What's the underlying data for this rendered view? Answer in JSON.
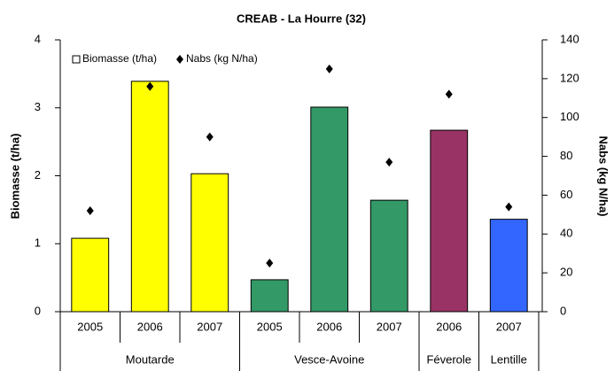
{
  "chart_data": {
    "type": "bar",
    "title": "CREAB - La Hourre (32)",
    "y_label": "Biomasse (t/ha)",
    "y2_label": "Nabs (kg N/ha)",
    "categories": [
      "2005",
      "2006",
      "2007",
      "2005",
      "2006",
      "2007",
      "2006",
      "2007"
    ],
    "groups": [
      "Moutarde",
      "Moutarde",
      "Moutarde",
      "Vesce-Avoine",
      "Vesce-Avoine",
      "Vesce-Avoine",
      "Féverole",
      "Lentille"
    ],
    "series": [
      {
        "name": "Biomasse (t/ha)",
        "type": "bar",
        "color": "#ffffff",
        "colors": [
          "#ffff00",
          "#ffff00",
          "#ffff00",
          "#339966",
          "#339966",
          "#339966",
          "#993366",
          "#3366ff"
        ],
        "values": [
          1.08,
          3.39,
          2.03,
          0.47,
          3.01,
          1.64,
          2.67,
          1.36
        ]
      },
      {
        "name": "Nabs (kg N/ha)",
        "type": "scatter",
        "axis": "y2",
        "color": "#000000",
        "values": [
          52,
          116,
          90,
          25,
          125,
          77,
          112,
          54
        ]
      }
    ],
    "ylim": [
      0,
      4
    ],
    "yticks": [
      0,
      1,
      2,
      3,
      4
    ],
    "y2lim": [
      0,
      140
    ],
    "y2ticks": [
      0,
      20,
      40,
      60,
      80,
      100,
      120,
      140
    ],
    "grid": false
  }
}
